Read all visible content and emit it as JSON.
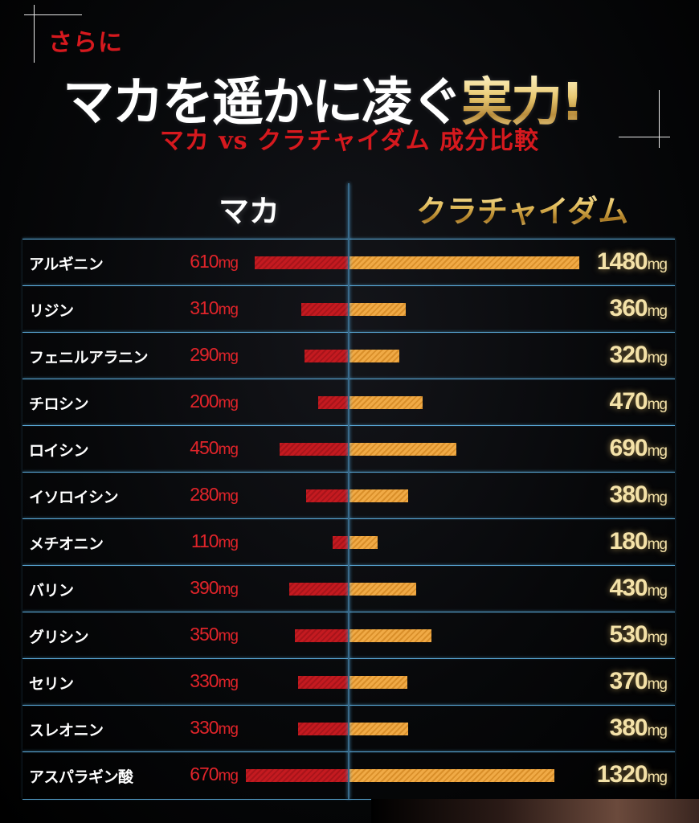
{
  "header": {
    "pre_title": "さらに",
    "headline_main": "マカを遥かに凌ぐ",
    "headline_accent": "実力!",
    "subtitle": "マカ vs クラチャイダム 成分比較"
  },
  "columns": {
    "left": "マカ",
    "right": "クラチャイダム"
  },
  "colors": {
    "maca": "#c41a20",
    "kurachaidam": "#f0aa46",
    "title_red": "#d6191e",
    "line_blue": "#5aa9d8"
  },
  "chart_data": {
    "type": "bar",
    "orientation": "horizontal-butterfly",
    "title": "マカ vs クラチャイダム 成分比較",
    "unit": "mg",
    "categories": [
      "アルギニン",
      "リジン",
      "フェニルアラニン",
      "チロシン",
      "ロイシン",
      "イソロイシン",
      "メチオニン",
      "バリン",
      "グリシン",
      "セリン",
      "スレオニン",
      "アスパラギン酸"
    ],
    "series": [
      {
        "name": "マカ",
        "values": [
          610,
          310,
          290,
          200,
          450,
          280,
          110,
          390,
          350,
          330,
          330,
          670
        ]
      },
      {
        "name": "クラチャイダム",
        "values": [
          1480,
          360,
          320,
          470,
          690,
          380,
          180,
          430,
          530,
          370,
          380,
          1320
        ]
      }
    ],
    "value_labels": {
      "maca": [
        "610",
        "310",
        "290",
        "200",
        "450",
        "280",
        "110",
        "390",
        "350",
        "330",
        "330",
        "670"
      ],
      "kurachaidam": [
        "1480",
        "360",
        "320",
        "470",
        "690",
        "380",
        "180",
        "430",
        "530",
        "370",
        "380",
        "1320"
      ]
    },
    "xlim": [
      0,
      1500
    ],
    "grid": "row-lines"
  }
}
